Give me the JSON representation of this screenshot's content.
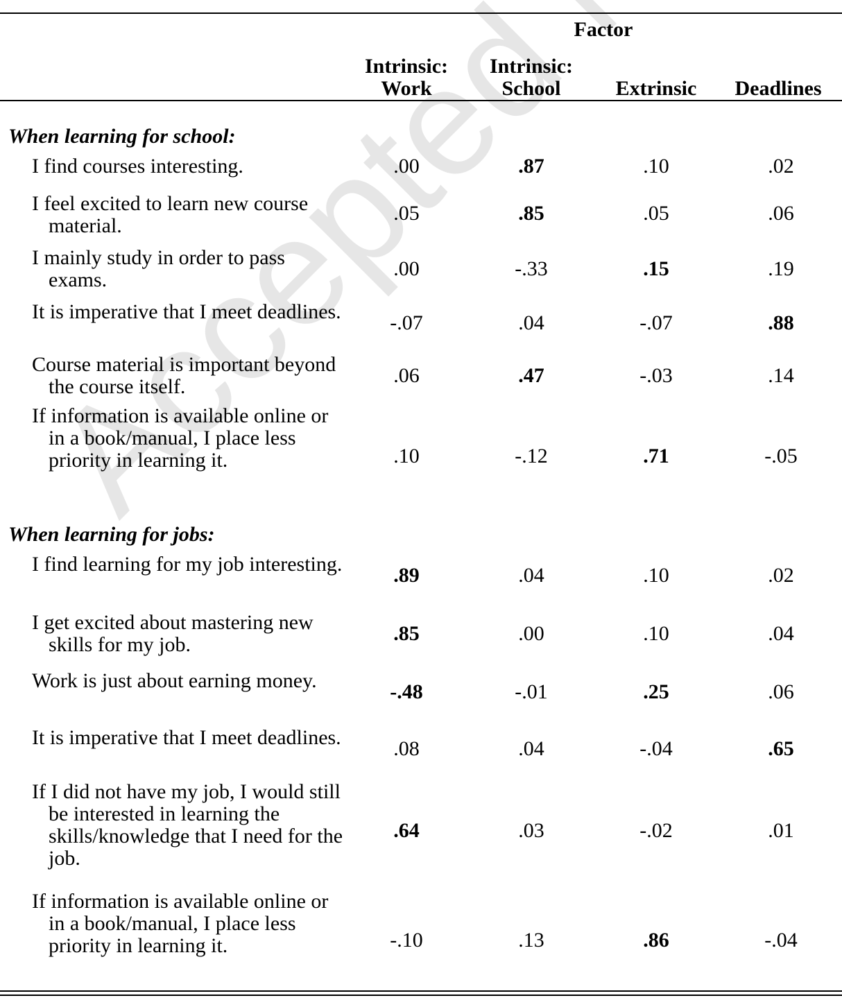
{
  "watermark": "Accepted Manuscript",
  "header": {
    "factor_label": "Factor",
    "columns": [
      "Intrinsic:\nWork",
      "Intrinsic:\nSchool",
      "Extrinsic",
      "Deadlines"
    ]
  },
  "sections": [
    {
      "title": "When learning for school:",
      "items": [
        {
          "text": "I find courses interesting.",
          "values": [
            ".00",
            ".87",
            ".10",
            ".02"
          ],
          "bold": [
            false,
            true,
            false,
            false
          ]
        },
        {
          "text": "I feel excited to learn new course material.",
          "values": [
            ".05",
            ".85",
            ".05",
            ".06"
          ],
          "bold": [
            false,
            true,
            false,
            false
          ]
        },
        {
          "text": "I mainly study in order to pass exams.",
          "values": [
            ".00",
            "-.33",
            ".15",
            ".19"
          ],
          "bold": [
            false,
            false,
            true,
            false
          ]
        },
        {
          "text": "It is imperative that I meet deadlines.",
          "values": [
            "-.07",
            ".04",
            "-.07",
            ".88"
          ],
          "bold": [
            false,
            false,
            false,
            true
          ]
        },
        {
          "text": "Course material is important beyond the course itself.",
          "values": [
            ".06",
            ".47",
            "-.03",
            ".14"
          ],
          "bold": [
            false,
            true,
            false,
            false
          ]
        },
        {
          "text": "If information is available online or in a book/manual, I place less priority in learning it.",
          "values": [
            ".10",
            "-.12",
            ".71",
            "-.05"
          ],
          "bold": [
            false,
            false,
            true,
            false
          ]
        }
      ]
    },
    {
      "title": "When learning for jobs:",
      "items": [
        {
          "text": "I find learning for my job interesting.",
          "values": [
            ".89",
            ".04",
            ".10",
            ".02"
          ],
          "bold": [
            true,
            false,
            false,
            false
          ]
        },
        {
          "text": "I get excited about mastering new skills for my job.",
          "values": [
            ".85",
            ".00",
            ".10",
            ".04"
          ],
          "bold": [
            true,
            false,
            false,
            false
          ]
        },
        {
          "text": "Work is just about earning money.",
          "values": [
            "-.48",
            "-.01",
            ".25",
            ".06"
          ],
          "bold": [
            true,
            false,
            true,
            false
          ]
        },
        {
          "text": "It is imperative that I meet deadlines.",
          "values": [
            ".08",
            ".04",
            "-.04",
            ".65"
          ],
          "bold": [
            false,
            false,
            false,
            true
          ]
        },
        {
          "text": "If I did not have my job, I would still be interested in learning the skills/knowledge that I need for the job.",
          "values": [
            ".64",
            ".03",
            "-.02",
            ".01"
          ],
          "bold": [
            true,
            false,
            false,
            false
          ]
        },
        {
          "text": "If information is available online or in a book/manual, I place less priority in learning it.",
          "values": [
            "-.10",
            ".13",
            ".86",
            "-.04"
          ],
          "bold": [
            false,
            false,
            true,
            false
          ]
        }
      ]
    }
  ]
}
